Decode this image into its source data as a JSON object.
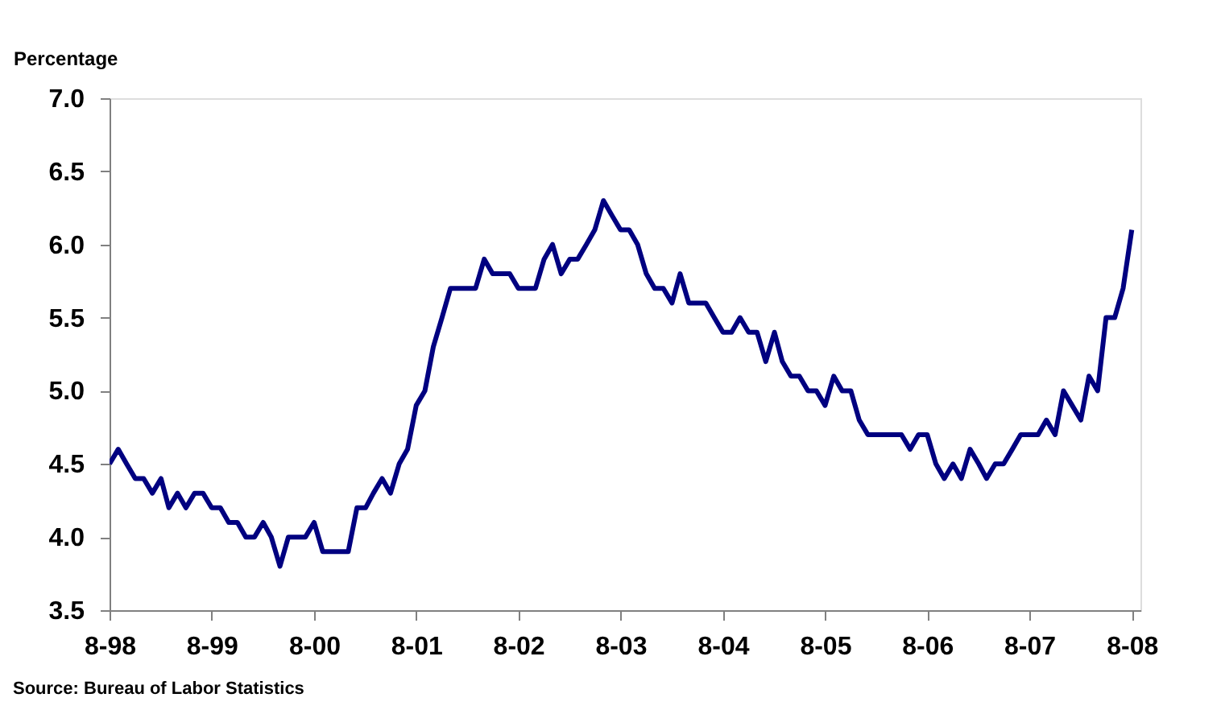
{
  "chart_data": {
    "type": "line",
    "ylabel": "Percentage",
    "annotations": [
      "Source: Bureau of Labor Statistics"
    ],
    "x": [
      "1998-08",
      "1998-09",
      "1998-10",
      "1998-11",
      "1998-12",
      "1999-01",
      "1999-02",
      "1999-03",
      "1999-04",
      "1999-05",
      "1999-06",
      "1999-07",
      "1999-08",
      "1999-09",
      "1999-10",
      "1999-11",
      "1999-12",
      "2000-01",
      "2000-02",
      "2000-03",
      "2000-04",
      "2000-05",
      "2000-06",
      "2000-07",
      "2000-08",
      "2000-09",
      "2000-10",
      "2000-11",
      "2000-12",
      "2001-01",
      "2001-02",
      "2001-03",
      "2001-04",
      "2001-05",
      "2001-06",
      "2001-07",
      "2001-08",
      "2001-09",
      "2001-10",
      "2001-11",
      "2001-12",
      "2002-01",
      "2002-02",
      "2002-03",
      "2002-04",
      "2002-05",
      "2002-06",
      "2002-07",
      "2002-08",
      "2002-09",
      "2002-10",
      "2002-11",
      "2002-12",
      "2003-01",
      "2003-02",
      "2003-03",
      "2003-04",
      "2003-05",
      "2003-06",
      "2003-07",
      "2003-08",
      "2003-09",
      "2003-10",
      "2003-11",
      "2003-12",
      "2004-01",
      "2004-02",
      "2004-03",
      "2004-04",
      "2004-05",
      "2004-06",
      "2004-07",
      "2004-08",
      "2004-09",
      "2004-10",
      "2004-11",
      "2004-12",
      "2005-01",
      "2005-02",
      "2005-03",
      "2005-04",
      "2005-05",
      "2005-06",
      "2005-07",
      "2005-08",
      "2005-09",
      "2005-10",
      "2005-11",
      "2005-12",
      "2006-01",
      "2006-02",
      "2006-03",
      "2006-04",
      "2006-05",
      "2006-06",
      "2006-07",
      "2006-08",
      "2006-09",
      "2006-10",
      "2006-11",
      "2006-12",
      "2007-01",
      "2007-02",
      "2007-03",
      "2007-04",
      "2007-05",
      "2007-06",
      "2007-07",
      "2007-08",
      "2007-09",
      "2007-10",
      "2007-11",
      "2007-12",
      "2008-01",
      "2008-02",
      "2008-03",
      "2008-04",
      "2008-05",
      "2008-06",
      "2008-07",
      "2008-08"
    ],
    "series": [
      {
        "color": "#000080",
        "values": [
          4.5,
          4.6,
          4.5,
          4.4,
          4.4,
          4.3,
          4.4,
          4.2,
          4.3,
          4.2,
          4.3,
          4.3,
          4.2,
          4.2,
          4.1,
          4.1,
          4.0,
          4.0,
          4.1,
          4.0,
          3.8,
          4.0,
          4.0,
          4.0,
          4.1,
          3.9,
          3.9,
          3.9,
          3.9,
          4.2,
          4.2,
          4.3,
          4.4,
          4.3,
          4.5,
          4.6,
          4.9,
          5.0,
          5.3,
          5.5,
          5.7,
          5.7,
          5.7,
          5.7,
          5.9,
          5.8,
          5.8,
          5.8,
          5.7,
          5.7,
          5.7,
          5.9,
          6.0,
          5.8,
          5.9,
          5.9,
          6.0,
          6.1,
          6.3,
          6.2,
          6.1,
          6.1,
          6.0,
          5.8,
          5.7,
          5.7,
          5.6,
          5.8,
          5.6,
          5.6,
          5.6,
          5.5,
          5.4,
          5.4,
          5.5,
          5.4,
          5.4,
          5.2,
          5.4,
          5.2,
          5.1,
          5.1,
          5.0,
          5.0,
          4.9,
          5.1,
          5.0,
          5.0,
          4.8,
          4.7,
          4.7,
          4.7,
          4.7,
          4.7,
          4.6,
          4.7,
          4.7,
          4.5,
          4.4,
          4.5,
          4.4,
          4.6,
          4.5,
          4.4,
          4.5,
          4.5,
          4.6,
          4.7,
          4.7,
          4.7,
          4.8,
          4.7,
          5.0,
          4.9,
          4.8,
          5.1,
          5.0,
          5.5,
          5.5,
          5.7,
          6.1
        ]
      }
    ],
    "xlim": [
      "1998-08",
      "2008-09"
    ],
    "xticks": [
      {
        "value": "1998-08",
        "label": "8-98"
      },
      {
        "value": "1999-08",
        "label": "8-99"
      },
      {
        "value": "2000-08",
        "label": "8-00"
      },
      {
        "value": "2001-08",
        "label": "8-01"
      },
      {
        "value": "2002-08",
        "label": "8-02"
      },
      {
        "value": "2003-08",
        "label": "8-03"
      },
      {
        "value": "2004-08",
        "label": "8-04"
      },
      {
        "value": "2005-08",
        "label": "8-05"
      },
      {
        "value": "2006-08",
        "label": "8-06"
      },
      {
        "value": "2007-08",
        "label": "8-07"
      },
      {
        "value": "2008-08",
        "label": "8-08"
      }
    ],
    "ylim": [
      3.5,
      7.0
    ],
    "yticks": [
      {
        "value": 3.5,
        "label": "3.5"
      },
      {
        "value": 4.0,
        "label": "4.0"
      },
      {
        "value": 4.5,
        "label": "4.5"
      },
      {
        "value": 5.0,
        "label": "5.0"
      },
      {
        "value": 5.5,
        "label": "5.5"
      },
      {
        "value": 6.0,
        "label": "6.0"
      },
      {
        "value": 6.5,
        "label": "6.5"
      },
      {
        "value": 7.0,
        "label": "7.0"
      }
    ],
    "grid": false,
    "legend": false,
    "marker": "none",
    "line_style": "solid"
  }
}
